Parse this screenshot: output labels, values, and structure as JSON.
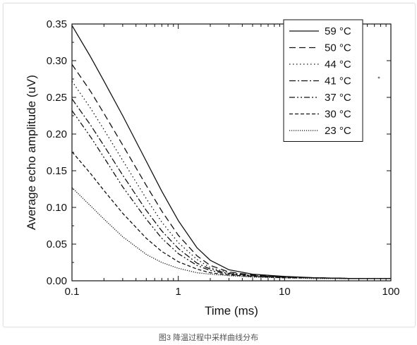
{
  "caption": "图3 降温过程中采样曲线分布",
  "colors": {
    "ink": "#111111",
    "frame": "#e2e2e2"
  },
  "chart_data": {
    "type": "line",
    "xlabel": "Time (ms)",
    "ylabel": "Average echo amplitude (uV)",
    "xscale": "log",
    "xlim": [
      0.1,
      100
    ],
    "ylim": [
      0,
      0.35
    ],
    "x_ticks": [
      "0.1",
      "1",
      "10",
      "100"
    ],
    "y_ticks": [
      "0.00",
      "0.05",
      "0.10",
      "0.15",
      "0.20",
      "0.25",
      "0.30",
      "0.35"
    ],
    "grid": false,
    "legend_position": "top-right",
    "x": [
      0.1,
      0.15,
      0.2,
      0.3,
      0.5,
      0.7,
      1,
      1.5,
      2,
      3,
      5,
      10,
      20,
      50,
      100
    ],
    "series": [
      {
        "name": "59 °C",
        "dash": "solid",
        "values": [
          0.348,
          0.305,
          0.272,
          0.225,
          0.163,
          0.122,
          0.082,
          0.045,
          0.028,
          0.015,
          0.009,
          0.006,
          0.004,
          0.003,
          0.003
        ]
      },
      {
        "name": "50 °C",
        "dash": "dash",
        "values": [
          0.295,
          0.258,
          0.228,
          0.185,
          0.13,
          0.095,
          0.062,
          0.034,
          0.021,
          0.012,
          0.008,
          0.005,
          0.004,
          0.003,
          0.003
        ]
      },
      {
        "name": "44 °C",
        "dash": "dot",
        "values": [
          0.272,
          0.235,
          0.206,
          0.164,
          0.112,
          0.08,
          0.052,
          0.029,
          0.018,
          0.011,
          0.007,
          0.005,
          0.004,
          0.003,
          0.003
        ]
      },
      {
        "name": "41 °C",
        "dash": "dashdot",
        "values": [
          0.248,
          0.212,
          0.184,
          0.144,
          0.096,
          0.068,
          0.044,
          0.024,
          0.016,
          0.01,
          0.007,
          0.005,
          0.004,
          0.003,
          0.003
        ]
      },
      {
        "name": "37 °C",
        "dash": "dashdotdot",
        "values": [
          0.232,
          0.196,
          0.168,
          0.128,
          0.084,
          0.058,
          0.037,
          0.021,
          0.014,
          0.009,
          0.006,
          0.005,
          0.004,
          0.003,
          0.003
        ]
      },
      {
        "name": "30 °C",
        "dash": "shortdash",
        "values": [
          0.176,
          0.146,
          0.123,
          0.092,
          0.058,
          0.04,
          0.026,
          0.016,
          0.011,
          0.008,
          0.006,
          0.004,
          0.004,
          0.003,
          0.003
        ]
      },
      {
        "name": "23 °C",
        "dash": "densedot",
        "values": [
          0.127,
          0.102,
          0.084,
          0.06,
          0.036,
          0.025,
          0.017,
          0.011,
          0.009,
          0.007,
          0.005,
          0.004,
          0.003,
          0.003,
          0.003
        ]
      }
    ]
  }
}
